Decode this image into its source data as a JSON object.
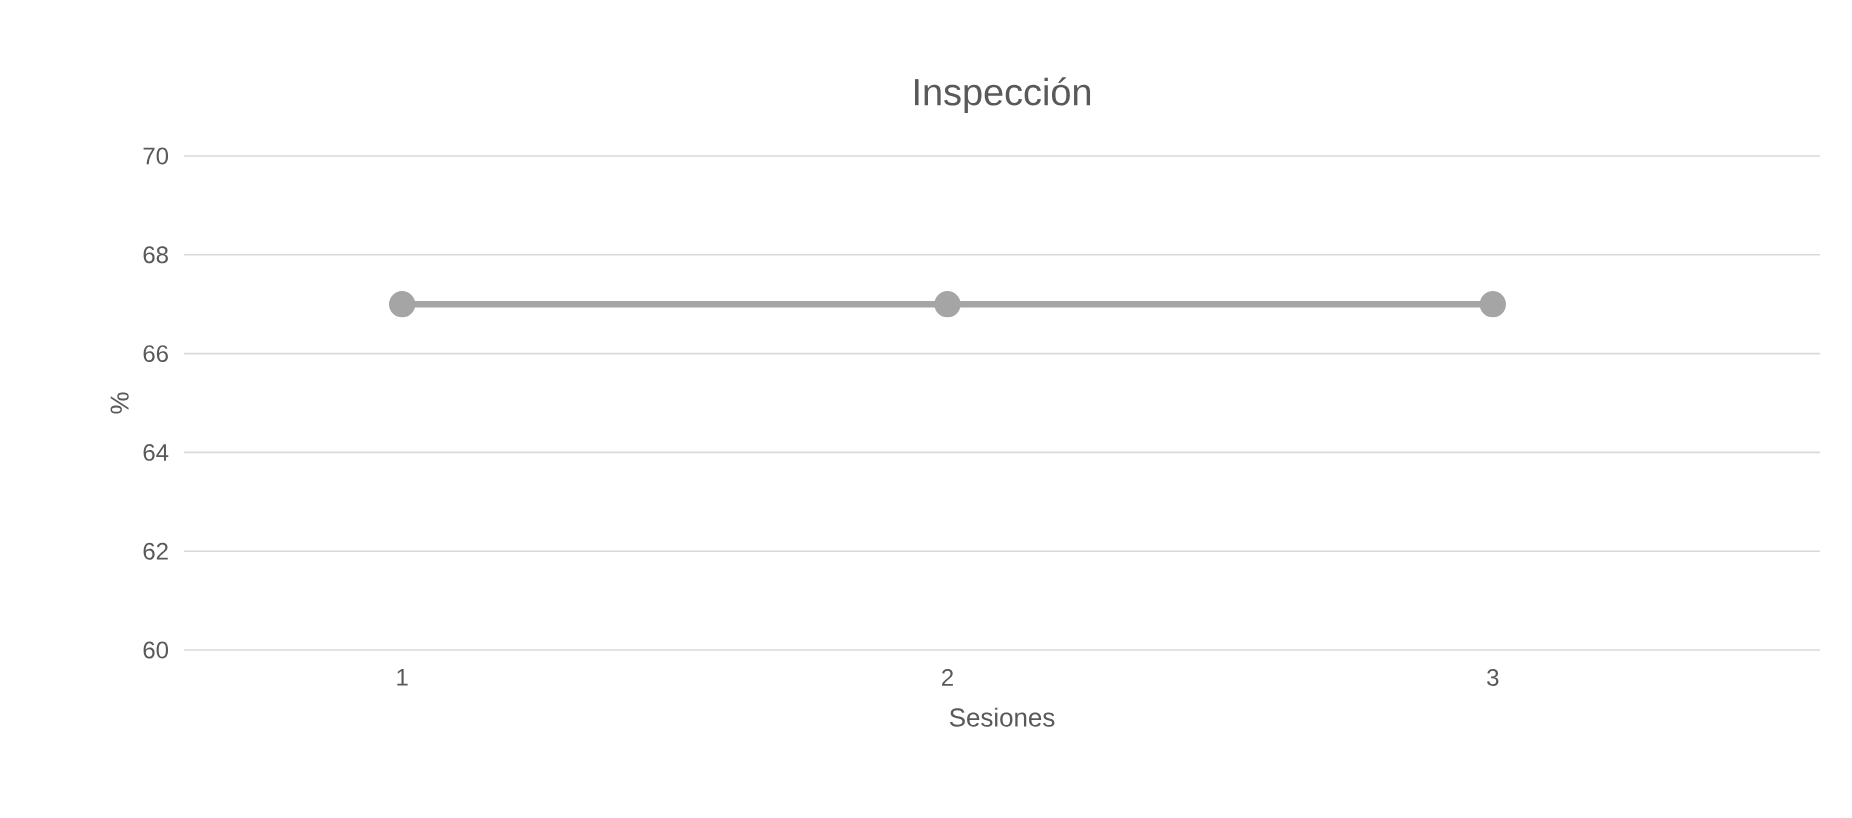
{
  "chart_data": {
    "type": "line",
    "title": "Inspección",
    "xlabel": "Sesiones",
    "ylabel": "%",
    "categories": [
      "1",
      "2",
      "3"
    ],
    "series": [
      {
        "color": "#a5a5a5",
        "values": [
          67,
          67,
          67
        ]
      }
    ],
    "ylim": [
      60,
      70
    ],
    "yticks": [
      60,
      62,
      64,
      66,
      68,
      70
    ],
    "grid": "y",
    "marker": "circle",
    "line_style": "solid"
  }
}
